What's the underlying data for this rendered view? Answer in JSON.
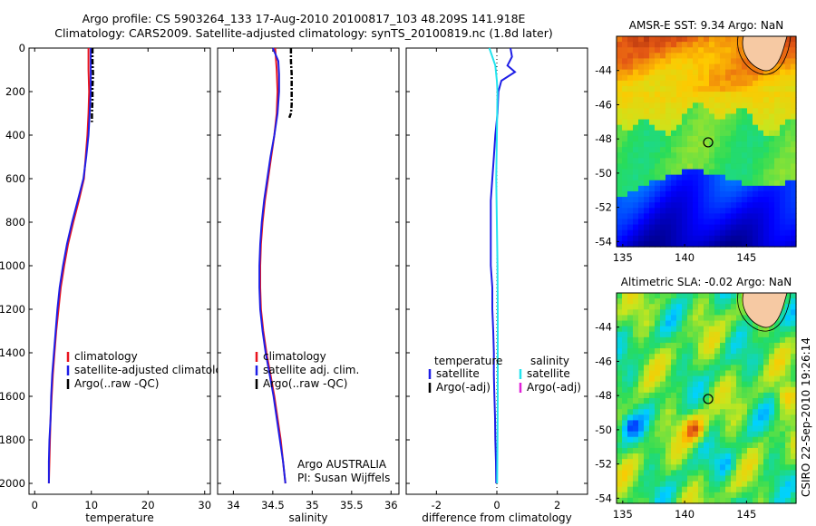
{
  "header": {
    "title_line1": "Argo profile: CS 5903264_133 17-Aug-2010 20100817_103 48.209S 141.918E",
    "title_line2": "Climatology: CARS2009. Satellite-adjusted climatology: synTS_20100819.nc (1.8d later)"
  },
  "footer": {
    "stamp": "CSIRO 22-Sep-2010 19:26:14"
  },
  "colors": {
    "climatology": "#e8141e",
    "satellite": "#1e1ee6",
    "argo": "#000000",
    "cyan": "#22e4ee",
    "magenta": "#e020d8",
    "land": "#f6c9a3"
  },
  "chart_data": [
    {
      "id": "temperature",
      "type": "line",
      "xlabel": "temperature",
      "ylabel": "",
      "xlim": [
        -1,
        31
      ],
      "ylim": [
        2050,
        0
      ],
      "xticks": [
        0,
        10,
        20,
        30
      ],
      "yticks": [
        0,
        200,
        400,
        600,
        800,
        1000,
        1200,
        1400,
        1600,
        1800,
        2000
      ],
      "legend": [
        "climatology",
        "satellite-adjusted climatology",
        "Argo(..raw -QC)"
      ],
      "series": [
        {
          "name": "climatology",
          "color": "#e8141e",
          "points": [
            [
              9.5,
              0
            ],
            [
              9.5,
              100
            ],
            [
              9.6,
              200
            ],
            [
              9.5,
              300
            ],
            [
              9.3,
              400
            ],
            [
              9.0,
              500
            ],
            [
              8.7,
              600
            ],
            [
              7.8,
              700
            ],
            [
              6.8,
              800
            ],
            [
              5.9,
              900
            ],
            [
              5.2,
              1000
            ],
            [
              4.6,
              1100
            ],
            [
              4.2,
              1200
            ],
            [
              3.8,
              1300
            ],
            [
              3.5,
              1400
            ],
            [
              3.2,
              1500
            ],
            [
              3.0,
              1600
            ],
            [
              2.8,
              1700
            ],
            [
              2.7,
              1800
            ],
            [
              2.6,
              1900
            ],
            [
              2.5,
              2000
            ]
          ]
        },
        {
          "name": "satellite-adjusted climatology",
          "color": "#1e1ee6",
          "points": [
            [
              9.9,
              0
            ],
            [
              9.9,
              100
            ],
            [
              9.9,
              200
            ],
            [
              9.7,
              300
            ],
            [
              9.5,
              400
            ],
            [
              9.1,
              500
            ],
            [
              8.6,
              600
            ],
            [
              7.6,
              700
            ],
            [
              6.6,
              800
            ],
            [
              5.7,
              900
            ],
            [
              5.0,
              1000
            ],
            [
              4.4,
              1100
            ],
            [
              4.0,
              1200
            ],
            [
              3.7,
              1300
            ],
            [
              3.4,
              1400
            ],
            [
              3.1,
              1500
            ],
            [
              2.9,
              1600
            ],
            [
              2.8,
              1700
            ],
            [
              2.6,
              1800
            ],
            [
              2.5,
              1900
            ],
            [
              2.5,
              2000
            ]
          ]
        },
        {
          "name": "Argo(..raw -QC)",
          "color": "#000000",
          "dash": true,
          "points": [
            [
              10.2,
              0
            ],
            [
              10.2,
              60
            ],
            [
              10.3,
              120
            ],
            [
              10.2,
              180
            ],
            [
              10.2,
              240
            ],
            [
              10.1,
              300
            ],
            [
              10.1,
              340
            ]
          ]
        }
      ]
    },
    {
      "id": "salinity",
      "type": "line",
      "xlabel": "salinity",
      "ylabel": "",
      "xlim": [
        33.8,
        36.1
      ],
      "ylim": [
        2050,
        0
      ],
      "xticks": [
        34,
        34.5,
        35,
        35.5,
        36
      ],
      "legend": [
        "climatology",
        "satellite adj. clim.",
        "Argo(..raw -QC)"
      ],
      "annotation_line1": "Argo AUSTRALIA",
      "annotation_line2": "PI: Susan Wijffels",
      "series": [
        {
          "name": "climatology",
          "color": "#e8141e",
          "points": [
            [
              34.53,
              0
            ],
            [
              34.55,
              100
            ],
            [
              34.56,
              200
            ],
            [
              34.55,
              300
            ],
            [
              34.52,
              400
            ],
            [
              34.48,
              500
            ],
            [
              34.44,
              600
            ],
            [
              34.4,
              700
            ],
            [
              34.37,
              800
            ],
            [
              34.35,
              900
            ],
            [
              34.34,
              1000
            ],
            [
              34.34,
              1100
            ],
            [
              34.35,
              1200
            ],
            [
              34.38,
              1300
            ],
            [
              34.42,
              1400
            ],
            [
              34.47,
              1500
            ],
            [
              34.52,
              1600
            ],
            [
              34.56,
              1700
            ],
            [
              34.6,
              1800
            ],
            [
              34.63,
              1900
            ],
            [
              34.66,
              2000
            ]
          ]
        },
        {
          "name": "satellite adj. clim.",
          "color": "#1e1ee6",
          "points": [
            [
              34.5,
              0
            ],
            [
              34.57,
              60
            ],
            [
              34.58,
              120
            ],
            [
              34.58,
              200
            ],
            [
              34.56,
              300
            ],
            [
              34.52,
              400
            ],
            [
              34.47,
              500
            ],
            [
              34.43,
              600
            ],
            [
              34.39,
              700
            ],
            [
              34.36,
              800
            ],
            [
              34.34,
              900
            ],
            [
              34.33,
              1000
            ],
            [
              34.33,
              1100
            ],
            [
              34.34,
              1200
            ],
            [
              34.37,
              1300
            ],
            [
              34.41,
              1400
            ],
            [
              34.46,
              1500
            ],
            [
              34.51,
              1600
            ],
            [
              34.55,
              1700
            ],
            [
              34.59,
              1800
            ],
            [
              34.63,
              1900
            ],
            [
              34.66,
              2000
            ]
          ]
        },
        {
          "name": "Argo(..raw -QC)",
          "color": "#000000",
          "dash": true,
          "points": [
            [
              34.73,
              0
            ],
            [
              34.73,
              60
            ],
            [
              34.74,
              120
            ],
            [
              34.74,
              200
            ],
            [
              34.74,
              260
            ],
            [
              34.73,
              300
            ],
            [
              34.71,
              320
            ]
          ]
        }
      ]
    },
    {
      "id": "difference",
      "type": "line",
      "xlabel": "difference from climatology",
      "ylabel": "",
      "xlim": [
        -3,
        3
      ],
      "ylim": [
        2050,
        0
      ],
      "xticks": [
        -2,
        0,
        2
      ],
      "legend_left_title": "temperature",
      "legend_left": [
        "satellite",
        "Argo(-adj)"
      ],
      "legend_right_title": "salinity",
      "legend_right": [
        "satellite",
        "Argo(-adj)"
      ],
      "series": [
        {
          "name": "temperature satellite",
          "color": "#1e1ee6",
          "points": [
            [
              0.45,
              0
            ],
            [
              0.5,
              40
            ],
            [
              0.35,
              80
            ],
            [
              0.6,
              110
            ],
            [
              0.15,
              150
            ],
            [
              0.05,
              200
            ],
            [
              0.02,
              300
            ],
            [
              -0.05,
              400
            ],
            [
              -0.1,
              500
            ],
            [
              -0.15,
              600
            ],
            [
              -0.2,
              700
            ],
            [
              -0.2,
              800
            ],
            [
              -0.2,
              900
            ],
            [
              -0.2,
              1000
            ],
            [
              -0.15,
              1100
            ],
            [
              -0.15,
              1200
            ],
            [
              -0.12,
              1300
            ],
            [
              -0.1,
              1400
            ],
            [
              -0.1,
              1500
            ],
            [
              -0.08,
              1600
            ],
            [
              -0.06,
              1700
            ],
            [
              -0.05,
              1800
            ],
            [
              -0.03,
              1900
            ],
            [
              -0.02,
              2000
            ]
          ]
        },
        {
          "name": "salinity satellite",
          "color": "#22e4ee",
          "points": [
            [
              -0.25,
              0
            ],
            [
              -0.15,
              40
            ],
            [
              -0.05,
              80
            ],
            [
              0.0,
              150
            ],
            [
              0.02,
              200
            ],
            [
              0.0,
              400
            ],
            [
              -0.02,
              600
            ],
            [
              0.0,
              800
            ],
            [
              0.02,
              1000
            ],
            [
              0.03,
              1200
            ],
            [
              0.03,
              1400
            ],
            [
              0.03,
              1600
            ],
            [
              0.02,
              1800
            ],
            [
              0.01,
              2000
            ]
          ]
        }
      ]
    },
    {
      "id": "sst-map",
      "type": "heatmap",
      "title": "AMSR-E SST: 9.34 Argo: NaN",
      "xlim": [
        134.5,
        149
      ],
      "ylim": [
        -54.3,
        -42
      ],
      "xticks": [
        135,
        140,
        145
      ],
      "yticks": [
        -44,
        -46,
        -48,
        -50,
        -52,
        -54
      ],
      "marker": {
        "lon": 141.9,
        "lat": -48.2
      }
    },
    {
      "id": "sla-map",
      "type": "heatmap",
      "title": "Altimetric SLA: -0.02 Argo: NaN",
      "xlim": [
        134.5,
        149
      ],
      "ylim": [
        -54.3,
        -42
      ],
      "xticks": [
        135,
        140,
        145
      ],
      "yticks": [
        -44,
        -46,
        -48,
        -50,
        -52,
        -54
      ],
      "marker": {
        "lon": 141.9,
        "lat": -48.2
      }
    }
  ]
}
